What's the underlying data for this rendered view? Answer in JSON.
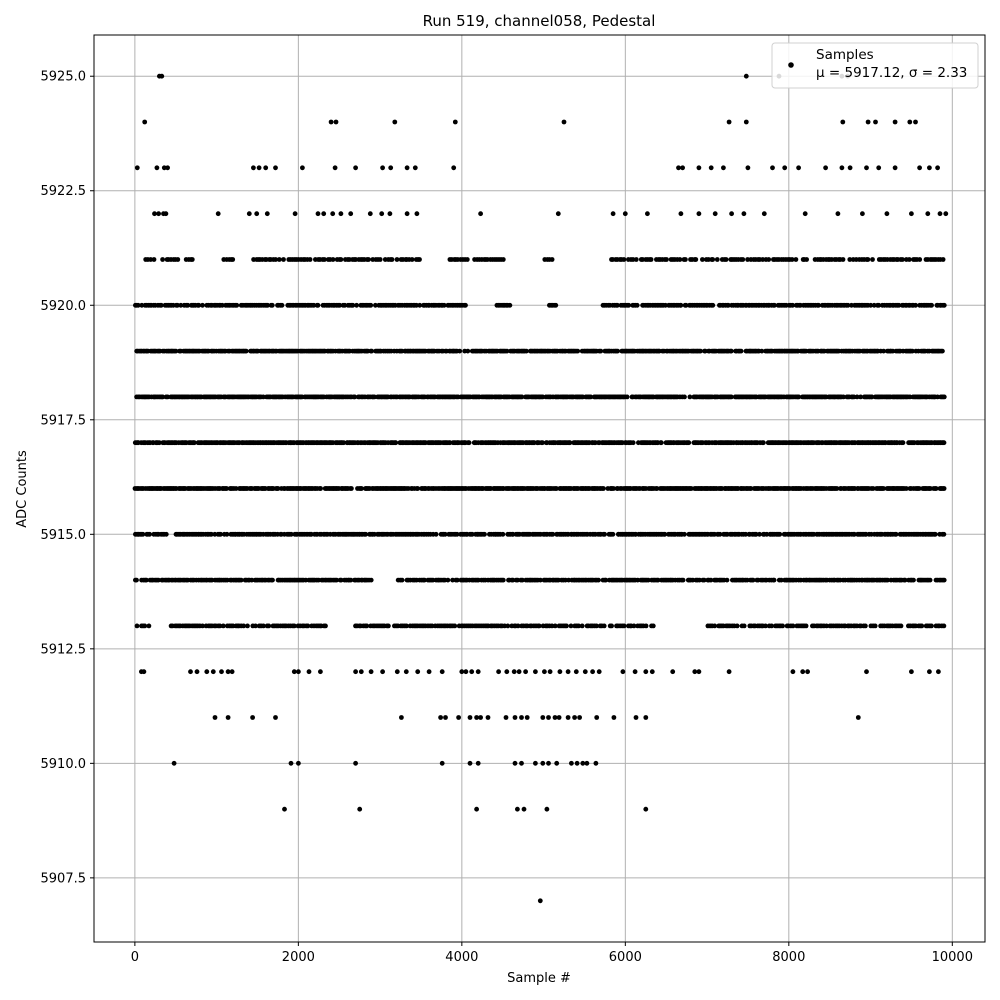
{
  "chart_data": {
    "type": "scatter",
    "title": "Run 519, channel058, Pedestal",
    "xlabel": "Sample #",
    "ylabel": "ADC Counts",
    "xlim": [
      -500,
      10400
    ],
    "ylim": [
      5906.1,
      5925.9
    ],
    "x_ticks": [
      0,
      2000,
      4000,
      6000,
      8000,
      10000
    ],
    "x_tick_labels": [
      "0",
      "2000",
      "4000",
      "6000",
      "8000",
      "10000"
    ],
    "y_ticks": [
      5907.5,
      5910.0,
      5912.5,
      5915.0,
      5917.5,
      5920.0,
      5922.5,
      5925.0
    ],
    "y_tick_labels": [
      "5907.5",
      "5910.0",
      "5912.5",
      "5915.0",
      "5917.5",
      "5920.0",
      "5922.5",
      "5925.0"
    ],
    "grid": true,
    "legend": {
      "placement": "top-right",
      "entries": [
        "Samples",
        "μ = 5917.12, σ = 2.33"
      ]
    },
    "marker_color": "#000000",
    "series": [
      {
        "name": "Samples",
        "points": [
          [
            30,
            5923
          ],
          [
            120,
            5924
          ],
          [
            300,
            5925
          ],
          [
            330,
            5925
          ],
          [
            270,
            5923
          ],
          [
            360,
            5923
          ],
          [
            400,
            5923
          ],
          [
            240,
            5922
          ],
          [
            290,
            5922
          ],
          [
            350,
            5922
          ],
          [
            380,
            5922
          ],
          [
            1450,
            5923
          ],
          [
            1520,
            5923
          ],
          [
            1600,
            5923
          ],
          [
            1720,
            5923
          ],
          [
            2050,
            5923
          ],
          [
            2450,
            5923
          ],
          [
            2700,
            5923
          ],
          [
            3030,
            5923
          ],
          [
            3130,
            5923
          ],
          [
            3330,
            5923
          ],
          [
            3430,
            5923
          ],
          [
            3900,
            5923
          ],
          [
            2400,
            5924
          ],
          [
            2460,
            5924
          ],
          [
            3180,
            5924
          ],
          [
            3920,
            5924
          ],
          [
            5250,
            5924
          ],
          [
            1020,
            5922
          ],
          [
            1400,
            5922
          ],
          [
            1490,
            5922
          ],
          [
            1620,
            5922
          ],
          [
            1960,
            5922
          ],
          [
            2240,
            5922
          ],
          [
            2310,
            5922
          ],
          [
            2420,
            5922
          ],
          [
            2520,
            5922
          ],
          [
            2640,
            5922
          ],
          [
            2880,
            5922
          ],
          [
            3020,
            5922
          ],
          [
            3120,
            5922
          ],
          [
            3330,
            5922
          ],
          [
            3450,
            5922
          ],
          [
            4230,
            5922
          ],
          [
            5180,
            5922
          ],
          [
            5850,
            5922
          ],
          [
            6000,
            5922
          ],
          [
            6270,
            5922
          ],
          [
            6680,
            5922
          ],
          [
            6900,
            5922
          ],
          [
            7100,
            5922
          ],
          [
            7300,
            5922
          ],
          [
            7450,
            5922
          ],
          [
            7700,
            5922
          ],
          [
            8200,
            5922
          ],
          [
            8600,
            5922
          ],
          [
            8900,
            5922
          ],
          [
            9200,
            5922
          ],
          [
            9500,
            5922
          ],
          [
            9700,
            5922
          ],
          [
            9850,
            5922
          ],
          [
            9920,
            5922
          ],
          [
            6650,
            5923
          ],
          [
            6700,
            5923
          ],
          [
            6900,
            5923
          ],
          [
            7050,
            5923
          ],
          [
            7200,
            5923
          ],
          [
            7500,
            5923
          ],
          [
            7800,
            5923
          ],
          [
            7950,
            5923
          ],
          [
            8120,
            5923
          ],
          [
            8450,
            5923
          ],
          [
            8650,
            5923
          ],
          [
            8750,
            5923
          ],
          [
            8950,
            5923
          ],
          [
            9100,
            5923
          ],
          [
            9300,
            5923
          ],
          [
            9600,
            5923
          ],
          [
            9720,
            5923
          ],
          [
            9820,
            5923
          ],
          [
            7270,
            5924
          ],
          [
            7480,
            5924
          ],
          [
            8660,
            5924
          ],
          [
            8970,
            5924
          ],
          [
            9060,
            5924
          ],
          [
            9300,
            5924
          ],
          [
            9480,
            5924
          ],
          [
            9550,
            5924
          ],
          [
            7480,
            5925
          ],
          [
            7880,
            5925
          ],
          [
            8650,
            5925
          ],
          [
            8720,
            5925
          ],
          [
            80,
            5912
          ],
          [
            110,
            5912
          ],
          [
            680,
            5912
          ],
          [
            760,
            5912
          ],
          [
            880,
            5912
          ],
          [
            960,
            5912
          ],
          [
            1060,
            5912
          ],
          [
            1140,
            5912
          ],
          [
            1190,
            5912
          ],
          [
            1950,
            5912
          ],
          [
            2000,
            5912
          ],
          [
            2130,
            5912
          ],
          [
            2270,
            5912
          ],
          [
            2700,
            5912
          ],
          [
            2770,
            5912
          ],
          [
            2890,
            5912
          ],
          [
            3030,
            5912
          ],
          [
            3210,
            5912
          ],
          [
            3320,
            5912
          ],
          [
            3460,
            5912
          ],
          [
            3600,
            5912
          ],
          [
            3760,
            5912
          ],
          [
            4000,
            5912
          ],
          [
            4050,
            5912
          ],
          [
            4120,
            5912
          ],
          [
            4200,
            5912
          ],
          [
            4450,
            5912
          ],
          [
            4550,
            5912
          ],
          [
            4640,
            5912
          ],
          [
            4700,
            5912
          ],
          [
            4780,
            5912
          ],
          [
            4900,
            5912
          ],
          [
            5010,
            5912
          ],
          [
            5080,
            5912
          ],
          [
            5200,
            5912
          ],
          [
            5300,
            5912
          ],
          [
            5400,
            5912
          ],
          [
            5510,
            5912
          ],
          [
            5600,
            5912
          ],
          [
            5680,
            5912
          ],
          [
            5970,
            5912
          ],
          [
            6120,
            5912
          ],
          [
            6250,
            5912
          ],
          [
            6330,
            5912
          ],
          [
            6580,
            5912
          ],
          [
            6850,
            5912
          ],
          [
            6900,
            5912
          ],
          [
            7270,
            5912
          ],
          [
            8050,
            5912
          ],
          [
            8170,
            5912
          ],
          [
            8230,
            5912
          ],
          [
            8950,
            5912
          ],
          [
            9500,
            5912
          ],
          [
            9720,
            5912
          ],
          [
            9830,
            5912
          ],
          [
            980,
            5911
          ],
          [
            1140,
            5911
          ],
          [
            1440,
            5911
          ],
          [
            1720,
            5911
          ],
          [
            3260,
            5911
          ],
          [
            3740,
            5911
          ],
          [
            3800,
            5911
          ],
          [
            3960,
            5911
          ],
          [
            4100,
            5911
          ],
          [
            4180,
            5911
          ],
          [
            4230,
            5911
          ],
          [
            4320,
            5911
          ],
          [
            4540,
            5911
          ],
          [
            4650,
            5911
          ],
          [
            4730,
            5911
          ],
          [
            4800,
            5911
          ],
          [
            4990,
            5911
          ],
          [
            5060,
            5911
          ],
          [
            5140,
            5911
          ],
          [
            5190,
            5911
          ],
          [
            5300,
            5911
          ],
          [
            5380,
            5911
          ],
          [
            5440,
            5911
          ],
          [
            5650,
            5911
          ],
          [
            5860,
            5911
          ],
          [
            6130,
            5911
          ],
          [
            6250,
            5911
          ],
          [
            8850,
            5911
          ],
          [
            480,
            5910
          ],
          [
            1910,
            5910
          ],
          [
            2000,
            5910
          ],
          [
            2700,
            5910
          ],
          [
            3760,
            5910
          ],
          [
            4100,
            5910
          ],
          [
            4200,
            5910
          ],
          [
            4650,
            5910
          ],
          [
            4730,
            5910
          ],
          [
            4900,
            5910
          ],
          [
            4990,
            5910
          ],
          [
            5060,
            5910
          ],
          [
            5160,
            5910
          ],
          [
            5340,
            5910
          ],
          [
            5410,
            5910
          ],
          [
            5480,
            5910
          ],
          [
            5530,
            5910
          ],
          [
            5640,
            5910
          ],
          [
            1830,
            5909
          ],
          [
            2750,
            5909
          ],
          [
            4180,
            5909
          ],
          [
            4680,
            5909
          ],
          [
            4760,
            5909
          ],
          [
            5040,
            5909
          ],
          [
            6250,
            5909
          ],
          [
            4960,
            5907
          ]
        ]
      }
    ]
  }
}
